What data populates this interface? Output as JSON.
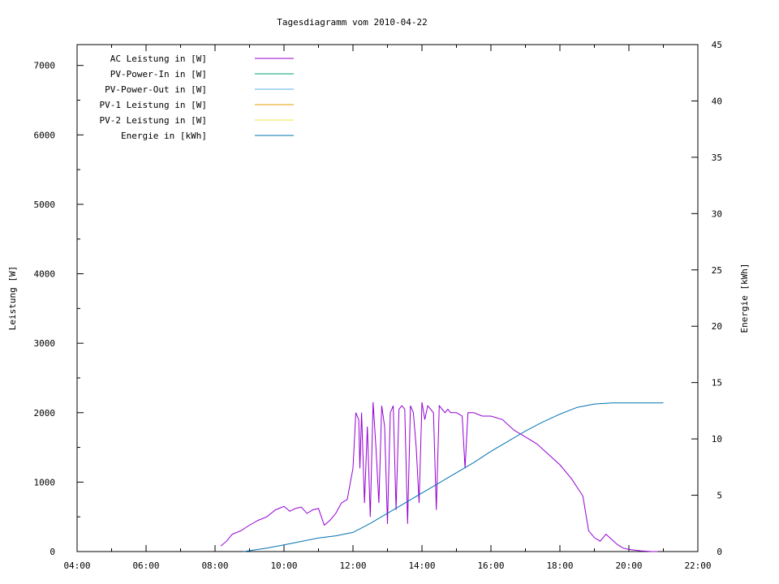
{
  "chart_data": {
    "type": "line",
    "title": "Tagesdiagramm vom 2010-04-22",
    "ylabel": "Leistung [W]",
    "y2label": "Energie [kWh]",
    "xlim": [
      "04:00",
      "22:00"
    ],
    "ylim": [
      0,
      7300
    ],
    "y2lim": [
      0,
      45
    ],
    "xticks": [
      "04:00",
      "06:00",
      "08:00",
      "10:00",
      "12:00",
      "14:00",
      "16:00",
      "18:00",
      "20:00",
      "22:00"
    ],
    "yticks": [
      0,
      1000,
      2000,
      3000,
      4000,
      5000,
      6000,
      7000
    ],
    "y2ticks": [
      0,
      5,
      10,
      15,
      20,
      25,
      30,
      35,
      40,
      45
    ],
    "grid": false,
    "legend_position": "top-left",
    "series": [
      {
        "name": "AC Leistung in [W]",
        "axis": "left",
        "color": "#9400d3",
        "x": [
          "08:10",
          "08:20",
          "08:30",
          "08:45",
          "09:00",
          "09:15",
          "09:30",
          "09:45",
          "10:00",
          "10:10",
          "10:15",
          "10:20",
          "10:30",
          "10:40",
          "10:50",
          "11:00",
          "11:10",
          "11:20",
          "11:30",
          "11:40",
          "11:50",
          "12:00",
          "12:05",
          "12:10",
          "12:12",
          "12:15",
          "12:20",
          "12:25",
          "12:30",
          "12:35",
          "12:40",
          "12:45",
          "12:50",
          "12:55",
          "13:00",
          "13:05",
          "13:10",
          "13:15",
          "13:20",
          "13:25",
          "13:30",
          "13:35",
          "13:40",
          "13:45",
          "13:50",
          "13:55",
          "14:00",
          "14:05",
          "14:10",
          "14:15",
          "14:20",
          "14:25",
          "14:30",
          "14:35",
          "14:40",
          "14:45",
          "14:50",
          "15:00",
          "15:10",
          "15:15",
          "15:20",
          "15:30",
          "15:45",
          "16:00",
          "16:20",
          "16:40",
          "17:00",
          "17:20",
          "17:40",
          "18:00",
          "18:20",
          "18:40",
          "18:50",
          "19:00",
          "19:10",
          "19:20",
          "19:40",
          "19:50",
          "20:00",
          "20:20",
          "20:40",
          "20:50"
        ],
        "y": [
          80,
          150,
          250,
          300,
          380,
          450,
          500,
          600,
          650,
          580,
          600,
          620,
          640,
          550,
          600,
          620,
          380,
          450,
          550,
          700,
          750,
          1200,
          2000,
          1900,
          1200,
          2000,
          700,
          1800,
          500,
          2150,
          1500,
          700,
          2100,
          1800,
          400,
          2000,
          2100,
          600,
          2050,
          2100,
          2050,
          400,
          2100,
          2000,
          1500,
          700,
          2150,
          1900,
          2100,
          2050,
          2000,
          600,
          2100,
          2050,
          2000,
          2050,
          2000,
          2000,
          1950,
          1200,
          2000,
          2000,
          1950,
          1950,
          1900,
          1750,
          1650,
          1550,
          1400,
          1250,
          1050,
          800,
          300,
          200,
          150,
          250,
          100,
          50,
          30,
          10,
          0,
          0
        ]
      },
      {
        "name": "PV-Power-In in [W]",
        "axis": "left",
        "color": "#009e73",
        "x": [],
        "y": []
      },
      {
        "name": "PV-Power-Out in [W]",
        "axis": "left",
        "color": "#56b4e9",
        "x": [],
        "y": []
      },
      {
        "name": "PV-1 Leistung in [W]",
        "axis": "left",
        "color": "#e69f00",
        "x": [],
        "y": []
      },
      {
        "name": "PV-2 Leistung in [W]",
        "axis": "left",
        "color": "#f0e442",
        "x": [],
        "y": []
      },
      {
        "name": "Energie in [kWh]",
        "axis": "right",
        "color": "#0072b2",
        "x": [
          "08:50",
          "09:30",
          "10:00",
          "10:30",
          "11:00",
          "11:30",
          "12:00",
          "12:30",
          "13:00",
          "13:30",
          "14:00",
          "14:30",
          "15:00",
          "15:30",
          "16:00",
          "16:30",
          "17:00",
          "17:30",
          "18:00",
          "18:30",
          "19:00",
          "19:30",
          "20:00",
          "20:30",
          "21:00"
        ],
        "y": [
          0,
          0.3,
          0.6,
          0.9,
          1.2,
          1.4,
          1.7,
          2.5,
          3.4,
          4.3,
          5.2,
          6.1,
          7.0,
          7.9,
          8.9,
          9.8,
          10.7,
          11.5,
          12.2,
          12.8,
          13.1,
          13.2,
          13.2,
          13.2,
          13.2
        ]
      }
    ]
  }
}
